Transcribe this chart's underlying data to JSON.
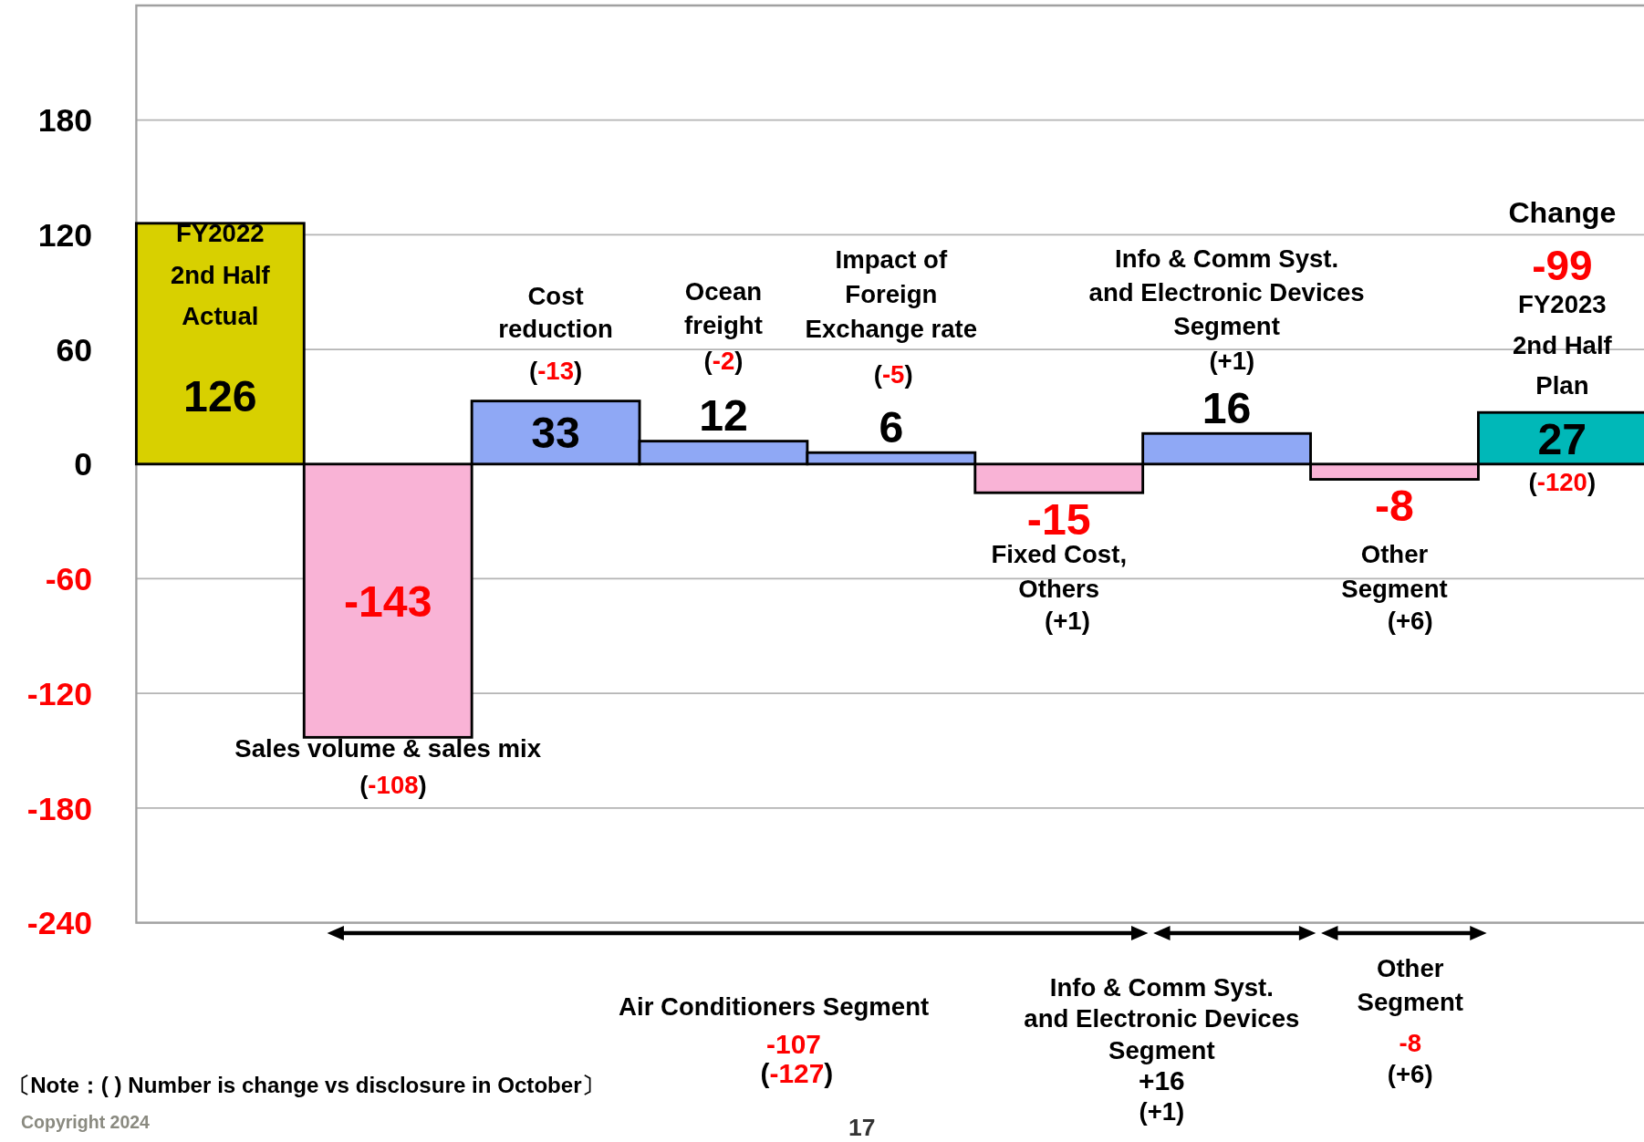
{
  "chart_data": {
    "type": "bar",
    "categories": [
      "FY2022 2nd Half Actual",
      "Sales volume & sales mix",
      "Cost reduction",
      "Ocean freight",
      "Impact of Foreign Exchange rate",
      "Fixed Cost, Others",
      "Info & Comm Syst. and Electronic Devices Segment",
      "Other Segment",
      "FY2023 2nd Half Plan"
    ],
    "values": [
      126,
      -143,
      33,
      12,
      6,
      -15,
      16,
      -8,
      27
    ],
    "colors": [
      "#d8d000",
      "#f9b3d6",
      "#8fa8f5",
      "#8fa8f5",
      "#8fa8f5",
      "#f9b3d6",
      "#8fa8f5",
      "#f9b3d6",
      "#00b8b8"
    ],
    "ylim": [
      -240,
      240
    ],
    "yticks": [
      -240,
      -180,
      -120,
      -60,
      0,
      60,
      120,
      180
    ],
    "grid": "y",
    "data_labels": true,
    "annotations": [
      "(-108)",
      "(-13)",
      "(-2)",
      "(-5)",
      "(+1)",
      "(+1)",
      "(+6)",
      "(-120)",
      "Change",
      "-99",
      "Air Conditioners Segment",
      "-107",
      "(-127)",
      "Info & Comm Syst. and Electronic Devices Segment",
      "+16",
      "(+1)",
      "Other Segment",
      "-8",
      "(+6)",
      "〔Note：( ) Number is change vs disclosure in October〕",
      "Copyright 2024",
      "17"
    ]
  }
}
